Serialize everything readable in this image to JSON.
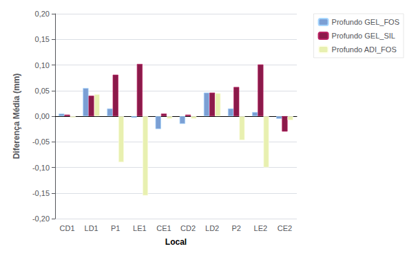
{
  "chart_data": {
    "type": "bar",
    "xlabel": "Local",
    "ylabel": "Diferença Média (mm)",
    "categories": [
      "CD1",
      "LD1",
      "P1",
      "LE1",
      "CE1",
      "CD2",
      "LD2",
      "P2",
      "LE2",
      "CE2"
    ],
    "series": [
      {
        "name": "Profundo GEL_FOS",
        "color": "#7b9fd4",
        "values": [
          0.005,
          0.055,
          0.015,
          -0.003,
          -0.025,
          -0.015,
          0.046,
          0.015,
          0.008,
          -0.005
        ]
      },
      {
        "name": "Profundo GEL_SIL",
        "color": "#8b1a4a",
        "values": [
          0.003,
          0.04,
          0.081,
          0.102,
          0.005,
          0.003,
          0.046,
          0.057,
          0.101,
          -0.03
        ]
      },
      {
        "name": "Profundo ADI_FOS",
        "color": "#e8f0b0",
        "values": [
          -0.003,
          0.043,
          -0.09,
          -0.155,
          -0.005,
          -0.005,
          0.045,
          -0.047,
          -0.1,
          -0.008
        ]
      }
    ],
    "ylim": [
      -0.2,
      0.2
    ],
    "yticks": [
      {
        "value": -0.2,
        "label": "-0,20"
      },
      {
        "value": -0.15,
        "label": "-0,15"
      },
      {
        "value": -0.1,
        "label": "-0,10"
      },
      {
        "value": -0.05,
        "label": "-0,05"
      },
      {
        "value": 0.0,
        "label": "0,00"
      },
      {
        "value": 0.05,
        "label": "0,05"
      },
      {
        "value": 0.1,
        "label": "0,10"
      },
      {
        "value": 0.15,
        "label": "0,15"
      },
      {
        "value": 0.2,
        "label": "0,20"
      }
    ],
    "grid": true,
    "legend": "right"
  }
}
